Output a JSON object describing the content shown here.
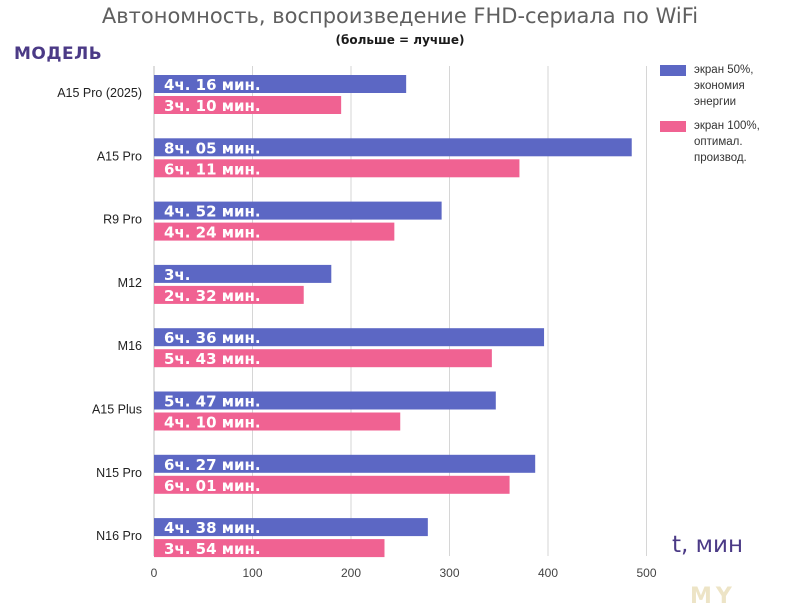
{
  "chart_data": {
    "type": "bar",
    "orientation": "horizontal",
    "title": "Автономность, воспроизведение FHD-сериала по WiFi",
    "subtitle": "(больше = лучше)",
    "ylabel": "МОДЕЛЬ",
    "xlabel": "t, мин",
    "xlim": [
      0,
      500
    ],
    "xticks": [
      0,
      100,
      200,
      300,
      400,
      500
    ],
    "grid": true,
    "legend_position": "top-right",
    "categories": [
      "A15 Pro (2025)",
      "A15 Pro",
      "R9 Pro",
      "M12",
      "M16",
      "A15 Plus",
      "N15 Pro",
      "N16 Pro"
    ],
    "series": [
      {
        "name": "экран 50%, экономия энергии",
        "color": "#5c67c4",
        "values": [
          256,
          485,
          292,
          180,
          396,
          347,
          387,
          278
        ],
        "labels": [
          "4ч. 16 мин.",
          "8ч. 05 мин.",
          "4ч. 52 мин.",
          "3ч.",
          "6ч. 36 мин.",
          "5ч. 47 мин.",
          "6ч. 27 мин.",
          "4ч. 38 мин."
        ]
      },
      {
        "name": "экран 100%, оптимал. производ.",
        "color": "#f06292",
        "values": [
          190,
          371,
          244,
          152,
          343,
          250,
          361,
          234
        ],
        "labels": [
          "3ч. 10 мин.",
          "6ч. 11 мин.",
          "4ч. 24 мин.",
          "2ч. 32 мин.",
          "5ч. 43 мин.",
          "4ч. 10 мин.",
          "6ч. 01 мин.",
          "3ч. 54 мин."
        ]
      }
    ]
  },
  "legend": {
    "items": [
      {
        "text": "экран 50%, экономия энергии",
        "color": "#5c67c4"
      },
      {
        "text": "экран 100%, оптимал. производ.",
        "color": "#f06292"
      }
    ]
  },
  "watermark": "MY"
}
